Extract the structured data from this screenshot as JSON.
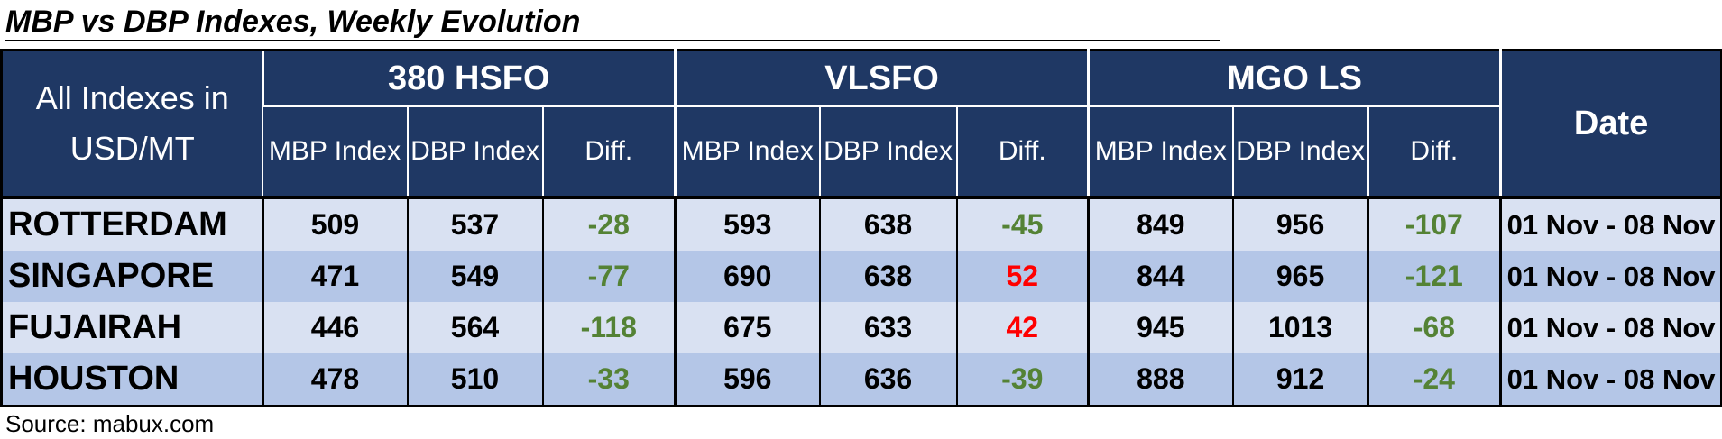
{
  "title": "MBP vs DBP Indexes, Weekly Evolution",
  "source": "Source: mabux.com",
  "colors": {
    "header_bg": "#1f3864",
    "row_light": "#d9e1f2",
    "row_dark": "#b4c6e7",
    "positive": "#ff0000",
    "negative": "#548235"
  },
  "chart_data": {
    "type": "table",
    "title": "MBP vs DBP Indexes, Weekly Evolution",
    "corner_header": "All Indexes in USD/MT",
    "groups": [
      "380 HSFO",
      "VLSFO",
      "MGO LS"
    ],
    "subheaders": [
      "MBP Index",
      "DBP Index",
      "Diff."
    ],
    "date_header": "Date",
    "rows": [
      {
        "port": "ROTTERDAM",
        "hsfo": [
          "509",
          "537",
          "-28"
        ],
        "vlsfo": [
          "593",
          "638",
          "-45"
        ],
        "mgo": [
          "849",
          "956",
          "-107"
        ],
        "date": "01 Nov - 08 Nov"
      },
      {
        "port": "SINGAPORE",
        "hsfo": [
          "471",
          "549",
          "-77"
        ],
        "vlsfo": [
          "690",
          "638",
          "52"
        ],
        "mgo": [
          "844",
          "965",
          "-121"
        ],
        "date": "01 Nov - 08 Nov"
      },
      {
        "port": "FUJAIRAH",
        "hsfo": [
          "446",
          "564",
          "-118"
        ],
        "vlsfo": [
          "675",
          "633",
          "42"
        ],
        "mgo": [
          "945",
          "1013",
          "-68"
        ],
        "date": "01 Nov - 08 Nov"
      },
      {
        "port": "HOUSTON",
        "hsfo": [
          "478",
          "510",
          "-33"
        ],
        "vlsfo": [
          "596",
          "636",
          "-39"
        ],
        "mgo": [
          "888",
          "912",
          "-24"
        ],
        "date": "01 Nov - 08 Nov"
      }
    ]
  }
}
